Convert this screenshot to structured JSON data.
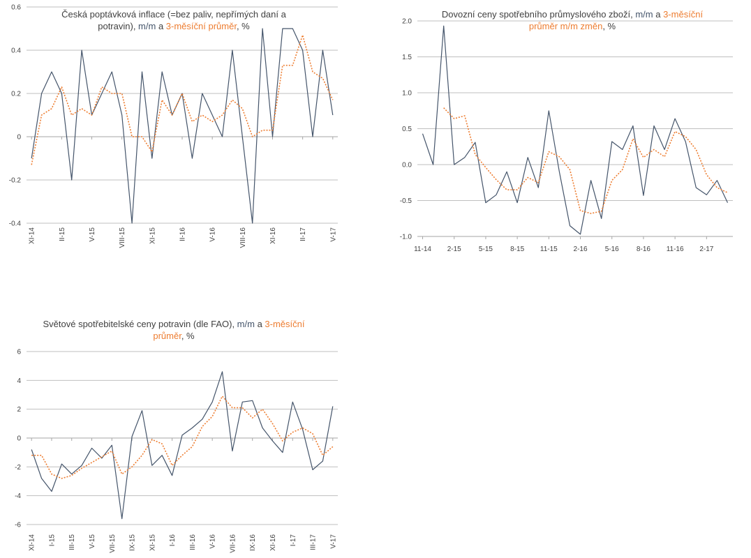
{
  "colors": {
    "mm": "#44546a",
    "avg": "#ed7d31",
    "grid": "#bfbfbf",
    "axis": "#bfbfbf",
    "text": "#404040"
  },
  "chart_data": [
    {
      "type": "line",
      "title_parts": {
        "main": "Česká poptávková inflace (=bez paliv, nepřímých daní a potravin), ",
        "mm": "m/m",
        "a": " a ",
        "avg": "3-měsíční průměr",
        "unit": ", %"
      },
      "ylim": [
        -0.4,
        0.6
      ],
      "yticks": [
        "-0.4",
        "-0.2",
        "0",
        "0.2",
        "0.4",
        "0.6"
      ],
      "xlabels": [
        "XI-14",
        "II-15",
        "V-15",
        "VIII-15",
        "XI-15",
        "II-16",
        "V-16",
        "VIII-16",
        "XI-16",
        "II-17",
        "V-17"
      ],
      "label_every": 3,
      "series": [
        {
          "key": "mm",
          "values": [
            -0.1,
            0.2,
            0.3,
            0.2,
            -0.2,
            0.4,
            0.1,
            0.2,
            0.3,
            0.1,
            -0.4,
            0.3,
            -0.1,
            0.3,
            0.1,
            0.2,
            -0.1,
            0.2,
            0.1,
            0.0,
            0.4,
            0.0,
            -0.4,
            0.5,
            0.0,
            0.5,
            0.5,
            0.4,
            0.0,
            0.4,
            0.1
          ]
        },
        {
          "key": "avg",
          "values": [
            -0.13,
            0.1,
            0.13,
            0.23,
            0.1,
            0.13,
            0.1,
            0.23,
            0.2,
            0.2,
            0.0,
            0.0,
            -0.07,
            0.17,
            0.1,
            0.2,
            0.07,
            0.1,
            0.07,
            0.1,
            0.17,
            0.13,
            0.0,
            0.03,
            0.03,
            0.33,
            0.33,
            0.47,
            0.3,
            0.27,
            0.17
          ]
        }
      ]
    },
    {
      "type": "line",
      "title_parts": {
        "main": "Dovozní ceny spotřebního průmyslového zboží, ",
        "mm": "m/m",
        "a": " a ",
        "avg": "3-měsíční průměr m/m změn",
        "unit": ", %"
      },
      "ylim": [
        -1.0,
        2.0
      ],
      "yticks": [
        "-1.0",
        "-0.5",
        "0.0",
        "0.5",
        "1.0",
        "1.5",
        "2.0"
      ],
      "xlabels": [
        "11-14",
        "2-15",
        "5-15",
        "8-15",
        "11-15",
        "2-16",
        "5-16",
        "8-16",
        "11-16",
        "2-17"
      ],
      "label_every": 3,
      "series": [
        {
          "key": "mm",
          "values": [
            0.43,
            0.0,
            1.93,
            0.0,
            0.1,
            0.31,
            -0.53,
            -0.42,
            -0.1,
            -0.53,
            0.1,
            -0.32,
            0.75,
            -0.1,
            -0.85,
            -0.97,
            -0.22,
            -0.75,
            0.32,
            0.21,
            0.54,
            -0.43,
            0.54,
            0.21,
            0.64,
            0.32,
            -0.32,
            -0.42,
            -0.22,
            -0.53
          ]
        },
        {
          "key": "avg",
          "values": [
            null,
            null,
            0.79,
            0.64,
            0.68,
            0.14,
            -0.04,
            -0.21,
            -0.35,
            -0.35,
            -0.18,
            -0.25,
            0.18,
            0.11,
            -0.07,
            -0.64,
            -0.68,
            -0.65,
            -0.22,
            -0.07,
            0.36,
            0.1,
            0.21,
            0.11,
            0.46,
            0.39,
            0.21,
            -0.14,
            -0.32,
            -0.39
          ]
        }
      ]
    },
    {
      "type": "line",
      "title_parts": {
        "main": "Světové spotřebitelské ceny potravin (dle FAO), ",
        "mm": "m/m",
        "a": " a ",
        "avg": "3-měsíční průměr",
        "unit": ", %"
      },
      "ylim": [
        -6,
        6
      ],
      "yticks": [
        "-6",
        "-4",
        "-2",
        "0",
        "2",
        "4",
        "6"
      ],
      "xlabels": [
        "XI-14",
        "I-15",
        "III-15",
        "V-15",
        "VII-15",
        "IX-15",
        "XI-15",
        "I-16",
        "III-16",
        "V-16",
        "VII-16",
        "IX-16",
        "XI-16",
        "I-17",
        "III-17",
        "V-17"
      ],
      "label_every": 2,
      "series": [
        {
          "key": "mm",
          "values": [
            -0.8,
            -2.8,
            -3.7,
            -1.8,
            -2.5,
            -1.9,
            -0.7,
            -1.4,
            -0.5,
            -5.6,
            0.1,
            1.9,
            -1.9,
            -1.2,
            -2.6,
            0.2,
            0.7,
            1.3,
            2.5,
            4.6,
            -0.9,
            2.5,
            2.6,
            0.7,
            -0.2,
            -1.0,
            2.5,
            0.6,
            -2.2,
            -1.6,
            2.2
          ]
        },
        {
          "key": "avg",
          "values": [
            -1.2,
            -1.2,
            -2.5,
            -2.8,
            -2.6,
            -2.1,
            -1.7,
            -1.3,
            -0.9,
            -2.5,
            -2.0,
            -1.2,
            -0.1,
            -0.4,
            -1.9,
            -1.2,
            -0.6,
            0.8,
            1.5,
            2.9,
            2.1,
            2.1,
            1.4,
            2.0,
            1.0,
            -0.2,
            0.4,
            0.7,
            0.3,
            -1.2,
            -0.6
          ]
        }
      ]
    }
  ]
}
